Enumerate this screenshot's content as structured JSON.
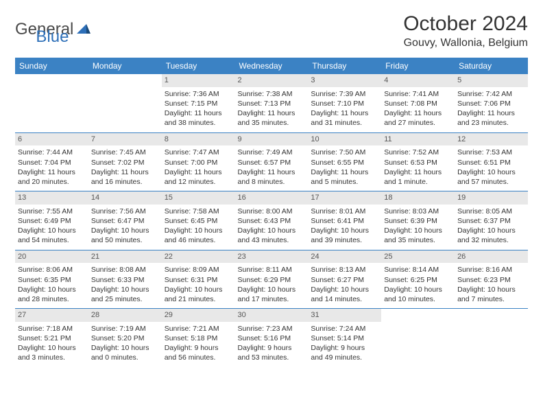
{
  "brand": {
    "part1": "General",
    "part2": "Blue"
  },
  "title": "October 2024",
  "location": "Gouvy, Wallonia, Belgium",
  "colors": {
    "header_bg": "#3b82c4",
    "header_text": "#ffffff",
    "daynum_bg": "#e8e8e8",
    "border": "#3b82c4",
    "brand_gray": "#4a4a4a",
    "brand_blue": "#2d6fb8"
  },
  "dayNames": [
    "Sunday",
    "Monday",
    "Tuesday",
    "Wednesday",
    "Thursday",
    "Friday",
    "Saturday"
  ],
  "weeks": [
    [
      null,
      null,
      {
        "n": "1",
        "sr": "Sunrise: 7:36 AM",
        "ss": "Sunset: 7:15 PM",
        "dl": "Daylight: 11 hours and 38 minutes."
      },
      {
        "n": "2",
        "sr": "Sunrise: 7:38 AM",
        "ss": "Sunset: 7:13 PM",
        "dl": "Daylight: 11 hours and 35 minutes."
      },
      {
        "n": "3",
        "sr": "Sunrise: 7:39 AM",
        "ss": "Sunset: 7:10 PM",
        "dl": "Daylight: 11 hours and 31 minutes."
      },
      {
        "n": "4",
        "sr": "Sunrise: 7:41 AM",
        "ss": "Sunset: 7:08 PM",
        "dl": "Daylight: 11 hours and 27 minutes."
      },
      {
        "n": "5",
        "sr": "Sunrise: 7:42 AM",
        "ss": "Sunset: 7:06 PM",
        "dl": "Daylight: 11 hours and 23 minutes."
      }
    ],
    [
      {
        "n": "6",
        "sr": "Sunrise: 7:44 AM",
        "ss": "Sunset: 7:04 PM",
        "dl": "Daylight: 11 hours and 20 minutes."
      },
      {
        "n": "7",
        "sr": "Sunrise: 7:45 AM",
        "ss": "Sunset: 7:02 PM",
        "dl": "Daylight: 11 hours and 16 minutes."
      },
      {
        "n": "8",
        "sr": "Sunrise: 7:47 AM",
        "ss": "Sunset: 7:00 PM",
        "dl": "Daylight: 11 hours and 12 minutes."
      },
      {
        "n": "9",
        "sr": "Sunrise: 7:49 AM",
        "ss": "Sunset: 6:57 PM",
        "dl": "Daylight: 11 hours and 8 minutes."
      },
      {
        "n": "10",
        "sr": "Sunrise: 7:50 AM",
        "ss": "Sunset: 6:55 PM",
        "dl": "Daylight: 11 hours and 5 minutes."
      },
      {
        "n": "11",
        "sr": "Sunrise: 7:52 AM",
        "ss": "Sunset: 6:53 PM",
        "dl": "Daylight: 11 hours and 1 minute."
      },
      {
        "n": "12",
        "sr": "Sunrise: 7:53 AM",
        "ss": "Sunset: 6:51 PM",
        "dl": "Daylight: 10 hours and 57 minutes."
      }
    ],
    [
      {
        "n": "13",
        "sr": "Sunrise: 7:55 AM",
        "ss": "Sunset: 6:49 PM",
        "dl": "Daylight: 10 hours and 54 minutes."
      },
      {
        "n": "14",
        "sr": "Sunrise: 7:56 AM",
        "ss": "Sunset: 6:47 PM",
        "dl": "Daylight: 10 hours and 50 minutes."
      },
      {
        "n": "15",
        "sr": "Sunrise: 7:58 AM",
        "ss": "Sunset: 6:45 PM",
        "dl": "Daylight: 10 hours and 46 minutes."
      },
      {
        "n": "16",
        "sr": "Sunrise: 8:00 AM",
        "ss": "Sunset: 6:43 PM",
        "dl": "Daylight: 10 hours and 43 minutes."
      },
      {
        "n": "17",
        "sr": "Sunrise: 8:01 AM",
        "ss": "Sunset: 6:41 PM",
        "dl": "Daylight: 10 hours and 39 minutes."
      },
      {
        "n": "18",
        "sr": "Sunrise: 8:03 AM",
        "ss": "Sunset: 6:39 PM",
        "dl": "Daylight: 10 hours and 35 minutes."
      },
      {
        "n": "19",
        "sr": "Sunrise: 8:05 AM",
        "ss": "Sunset: 6:37 PM",
        "dl": "Daylight: 10 hours and 32 minutes."
      }
    ],
    [
      {
        "n": "20",
        "sr": "Sunrise: 8:06 AM",
        "ss": "Sunset: 6:35 PM",
        "dl": "Daylight: 10 hours and 28 minutes."
      },
      {
        "n": "21",
        "sr": "Sunrise: 8:08 AM",
        "ss": "Sunset: 6:33 PM",
        "dl": "Daylight: 10 hours and 25 minutes."
      },
      {
        "n": "22",
        "sr": "Sunrise: 8:09 AM",
        "ss": "Sunset: 6:31 PM",
        "dl": "Daylight: 10 hours and 21 minutes."
      },
      {
        "n": "23",
        "sr": "Sunrise: 8:11 AM",
        "ss": "Sunset: 6:29 PM",
        "dl": "Daylight: 10 hours and 17 minutes."
      },
      {
        "n": "24",
        "sr": "Sunrise: 8:13 AM",
        "ss": "Sunset: 6:27 PM",
        "dl": "Daylight: 10 hours and 14 minutes."
      },
      {
        "n": "25",
        "sr": "Sunrise: 8:14 AM",
        "ss": "Sunset: 6:25 PM",
        "dl": "Daylight: 10 hours and 10 minutes."
      },
      {
        "n": "26",
        "sr": "Sunrise: 8:16 AM",
        "ss": "Sunset: 6:23 PM",
        "dl": "Daylight: 10 hours and 7 minutes."
      }
    ],
    [
      {
        "n": "27",
        "sr": "Sunrise: 7:18 AM",
        "ss": "Sunset: 5:21 PM",
        "dl": "Daylight: 10 hours and 3 minutes."
      },
      {
        "n": "28",
        "sr": "Sunrise: 7:19 AM",
        "ss": "Sunset: 5:20 PM",
        "dl": "Daylight: 10 hours and 0 minutes."
      },
      {
        "n": "29",
        "sr": "Sunrise: 7:21 AM",
        "ss": "Sunset: 5:18 PM",
        "dl": "Daylight: 9 hours and 56 minutes."
      },
      {
        "n": "30",
        "sr": "Sunrise: 7:23 AM",
        "ss": "Sunset: 5:16 PM",
        "dl": "Daylight: 9 hours and 53 minutes."
      },
      {
        "n": "31",
        "sr": "Sunrise: 7:24 AM",
        "ss": "Sunset: 5:14 PM",
        "dl": "Daylight: 9 hours and 49 minutes."
      },
      null,
      null
    ]
  ]
}
